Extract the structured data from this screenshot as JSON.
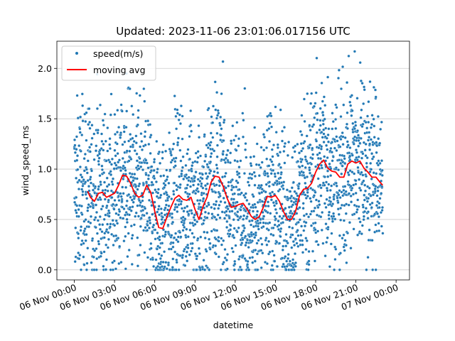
{
  "chart_data": {
    "type": "scatter",
    "title": "Updated: 2023-11-06 23:01:06.017156 UTC",
    "xlabel": "datetime",
    "ylabel": "wind_speed_ms",
    "xlim_hours": [
      -1.3,
      25.0
    ],
    "ylim": [
      -0.1,
      2.27
    ],
    "grid": "horizontal",
    "legend_placement": "top-left",
    "x_ticks": [
      {
        "hour": 0,
        "label": "06 Nov 00:00"
      },
      {
        "hour": 3,
        "label": "06 Nov 03:00"
      },
      {
        "hour": 6,
        "label": "06 Nov 06:00"
      },
      {
        "hour": 9,
        "label": "06 Nov 09:00"
      },
      {
        "hour": 12,
        "label": "06 Nov 12:00"
      },
      {
        "hour": 15,
        "label": "06 Nov 15:00"
      },
      {
        "hour": 18,
        "label": "06 Nov 18:00"
      },
      {
        "hour": 21,
        "label": "06 Nov 21:00"
      },
      {
        "hour": 24,
        "label": "07 Nov 00:00"
      }
    ],
    "y_ticks": [
      0.0,
      0.5,
      1.0,
      1.5,
      2.0
    ],
    "y_tick_labels": [
      "0.0",
      "0.5",
      "1.0",
      "1.5",
      "2.0"
    ],
    "series": [
      {
        "name": "speed(m/s)",
        "kind": "scatter",
        "color": "#1f77b4",
        "approx_points": 2400,
        "value_range": [
          0.0,
          2.17
        ],
        "hour_range": [
          0.0,
          23.0
        ]
      },
      {
        "name": "moving avg",
        "kind": "line",
        "color": "#ff0000",
        "points": [
          [
            1.0,
            0.78
          ],
          [
            1.2,
            0.72
          ],
          [
            1.5,
            0.68
          ],
          [
            1.8,
            0.76
          ],
          [
            2.1,
            0.77
          ],
          [
            2.4,
            0.72
          ],
          [
            2.7,
            0.74
          ],
          [
            3.0,
            0.76
          ],
          [
            3.3,
            0.84
          ],
          [
            3.6,
            0.94
          ],
          [
            3.9,
            0.93
          ],
          [
            4.2,
            0.86
          ],
          [
            4.5,
            0.76
          ],
          [
            4.8,
            0.72
          ],
          [
            5.1,
            0.74
          ],
          [
            5.4,
            0.84
          ],
          [
            5.7,
            0.77
          ],
          [
            6.0,
            0.58
          ],
          [
            6.3,
            0.42
          ],
          [
            6.6,
            0.41
          ],
          [
            6.9,
            0.52
          ],
          [
            7.2,
            0.62
          ],
          [
            7.5,
            0.71
          ],
          [
            7.8,
            0.74
          ],
          [
            8.1,
            0.7
          ],
          [
            8.4,
            0.69
          ],
          [
            8.7,
            0.72
          ],
          [
            9.0,
            0.6
          ],
          [
            9.3,
            0.5
          ],
          [
            9.6,
            0.63
          ],
          [
            9.9,
            0.72
          ],
          [
            10.2,
            0.87
          ],
          [
            10.5,
            0.93
          ],
          [
            10.8,
            0.92
          ],
          [
            11.1,
            0.83
          ],
          [
            11.4,
            0.71
          ],
          [
            11.7,
            0.62
          ],
          [
            12.0,
            0.63
          ],
          [
            12.3,
            0.65
          ],
          [
            12.6,
            0.66
          ],
          [
            12.9,
            0.6
          ],
          [
            13.2,
            0.53
          ],
          [
            13.5,
            0.5
          ],
          [
            13.8,
            0.53
          ],
          [
            14.1,
            0.62
          ],
          [
            14.4,
            0.73
          ],
          [
            14.7,
            0.72
          ],
          [
            15.0,
            0.74
          ],
          [
            15.3,
            0.68
          ],
          [
            15.6,
            0.58
          ],
          [
            15.9,
            0.5
          ],
          [
            16.2,
            0.5
          ],
          [
            16.5,
            0.58
          ],
          [
            16.8,
            0.74
          ],
          [
            17.1,
            0.8
          ],
          [
            17.4,
            0.81
          ],
          [
            17.7,
            0.86
          ],
          [
            18.0,
            0.97
          ],
          [
            18.3,
            1.05
          ],
          [
            18.6,
            1.09
          ],
          [
            18.9,
            1.01
          ],
          [
            19.2,
            0.98
          ],
          [
            19.5,
            0.97
          ],
          [
            19.8,
            0.92
          ],
          [
            20.1,
            0.92
          ],
          [
            20.4,
            1.05
          ],
          [
            20.7,
            1.08
          ],
          [
            21.0,
            1.06
          ],
          [
            21.3,
            1.08
          ],
          [
            21.6,
            1.01
          ],
          [
            21.9,
            0.97
          ],
          [
            22.2,
            0.92
          ],
          [
            22.5,
            0.92
          ],
          [
            22.8,
            0.87
          ],
          [
            23.0,
            0.84
          ]
        ]
      }
    ]
  },
  "colors": {
    "scatter": "#1f77b4",
    "line": "#ff0000",
    "grid": "#cccccc",
    "axis": "#000000",
    "point_edge": "#ffffff"
  }
}
